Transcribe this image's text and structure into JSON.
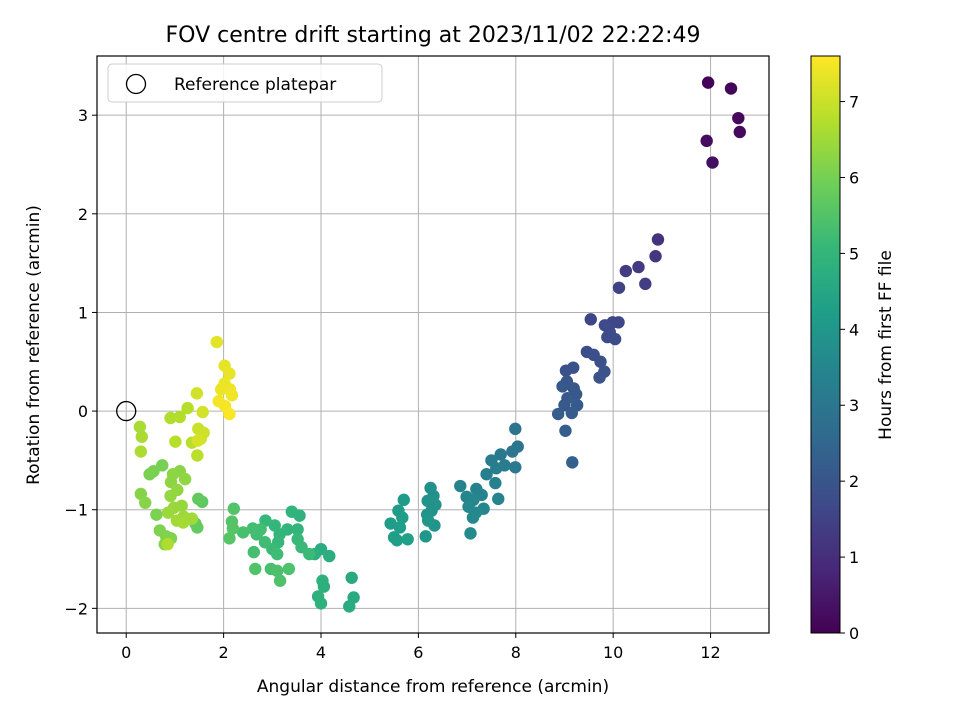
{
  "chart_data": {
    "type": "scatter",
    "title": "FOV centre drift starting at 2023/11/02 22:22:49",
    "xlabel": "Angular distance from reference (arcmin)",
    "ylabel": "Rotation from reference (arcmin)",
    "xlim": [
      -0.6,
      13.2
    ],
    "ylim": [
      -2.25,
      3.6
    ],
    "x_ticks": [
      0,
      2,
      4,
      6,
      8,
      10,
      12
    ],
    "y_ticks": [
      -2,
      -1,
      0,
      1,
      2,
      3
    ],
    "x_tick_labels": [
      "0",
      "2",
      "4",
      "6",
      "8",
      "10",
      "12"
    ],
    "y_tick_labels": [
      "−2",
      "−1",
      "0",
      "1",
      "2",
      "3"
    ],
    "grid": true,
    "legend": {
      "placement": "top-left",
      "entries": [
        {
          "label": "Reference platepar",
          "marker": "open-circle"
        }
      ]
    },
    "reference_point": {
      "x": 0,
      "y": 0
    },
    "colorbar": {
      "label": "Hours from first FF file",
      "colormap": "viridis",
      "range": [
        0,
        7.6
      ],
      "ticks": [
        0,
        1,
        2,
        3,
        4,
        5,
        6,
        7
      ],
      "tick_labels": [
        "0",
        "1",
        "2",
        "3",
        "4",
        "5",
        "6",
        "7"
      ]
    },
    "colormap_stops": [
      "#440154",
      "#482878",
      "#3e4a89",
      "#31688e",
      "#26828e",
      "#1f9e89",
      "#35b779",
      "#6ece58",
      "#b5de2b",
      "#fde725"
    ],
    "points": [
      {
        "x": 11.95,
        "y": 3.33,
        "t": 0.05
      },
      {
        "x": 12.42,
        "y": 3.27,
        "t": 0.1
      },
      {
        "x": 12.57,
        "y": 2.97,
        "t": 0.15
      },
      {
        "x": 12.6,
        "y": 2.83,
        "t": 0.2
      },
      {
        "x": 11.92,
        "y": 2.74,
        "t": 0.25
      },
      {
        "x": 12.04,
        "y": 2.52,
        "t": 0.3
      },
      {
        "x": 10.92,
        "y": 1.74,
        "t": 1.1
      },
      {
        "x": 10.87,
        "y": 1.57,
        "t": 1.2
      },
      {
        "x": 10.52,
        "y": 1.46,
        "t": 1.3
      },
      {
        "x": 10.26,
        "y": 1.42,
        "t": 1.35
      },
      {
        "x": 10.66,
        "y": 1.29,
        "t": 1.4
      },
      {
        "x": 10.12,
        "y": 1.25,
        "t": 1.5
      },
      {
        "x": 9.54,
        "y": 0.93,
        "t": 1.6
      },
      {
        "x": 9.99,
        "y": 0.9,
        "t": 1.62
      },
      {
        "x": 10.11,
        "y": 0.9,
        "t": 1.65
      },
      {
        "x": 9.83,
        "y": 0.87,
        "t": 1.68
      },
      {
        "x": 9.93,
        "y": 0.8,
        "t": 1.7
      },
      {
        "x": 9.88,
        "y": 0.75,
        "t": 1.72
      },
      {
        "x": 10.04,
        "y": 0.73,
        "t": 1.75
      },
      {
        "x": 9.46,
        "y": 0.6,
        "t": 1.8
      },
      {
        "x": 9.6,
        "y": 0.57,
        "t": 1.82
      },
      {
        "x": 9.74,
        "y": 0.5,
        "t": 1.85
      },
      {
        "x": 9.18,
        "y": 0.44,
        "t": 1.9
      },
      {
        "x": 9.03,
        "y": 0.41,
        "t": 1.92
      },
      {
        "x": 9.82,
        "y": 0.4,
        "t": 1.95
      },
      {
        "x": 9.72,
        "y": 0.34,
        "t": 1.97
      },
      {
        "x": 9.05,
        "y": 0.3,
        "t": 2.0
      },
      {
        "x": 9.19,
        "y": 0.23,
        "t": 2.02
      },
      {
        "x": 8.96,
        "y": 0.25,
        "t": 2.05
      },
      {
        "x": 9.24,
        "y": 0.17,
        "t": 2.08
      },
      {
        "x": 9.06,
        "y": 0.13,
        "t": 2.1
      },
      {
        "x": 9.0,
        "y": 0.06,
        "t": 2.12
      },
      {
        "x": 9.26,
        "y": 0.06,
        "t": 2.15
      },
      {
        "x": 9.15,
        "y": -0.02,
        "t": 2.18
      },
      {
        "x": 8.87,
        "y": -0.03,
        "t": 2.2
      },
      {
        "x": 9.02,
        "y": -0.2,
        "t": 2.25
      },
      {
        "x": 9.16,
        "y": -0.52,
        "t": 2.3
      },
      {
        "x": 7.99,
        "y": -0.18,
        "t": 2.9
      },
      {
        "x": 8.04,
        "y": -0.36,
        "t": 2.95
      },
      {
        "x": 7.93,
        "y": -0.41,
        "t": 3.0
      },
      {
        "x": 7.69,
        "y": -0.44,
        "t": 3.05
      },
      {
        "x": 7.99,
        "y": -0.57,
        "t": 3.1
      },
      {
        "x": 7.5,
        "y": -0.5,
        "t": 3.15
      },
      {
        "x": 7.77,
        "y": -0.55,
        "t": 3.18
      },
      {
        "x": 7.6,
        "y": -0.58,
        "t": 3.2
      },
      {
        "x": 7.4,
        "y": -0.64,
        "t": 3.25
      },
      {
        "x": 7.58,
        "y": -0.73,
        "t": 3.3
      },
      {
        "x": 7.19,
        "y": -0.79,
        "t": 3.35
      },
      {
        "x": 6.86,
        "y": -0.76,
        "t": 3.4
      },
      {
        "x": 7.3,
        "y": -0.85,
        "t": 3.42
      },
      {
        "x": 7.64,
        "y": -0.89,
        "t": 3.45
      },
      {
        "x": 6.99,
        "y": -0.87,
        "t": 3.48
      },
      {
        "x": 7.13,
        "y": -0.9,
        "t": 3.5
      },
      {
        "x": 7.34,
        "y": -0.99,
        "t": 3.52
      },
      {
        "x": 7.03,
        "y": -0.97,
        "t": 3.55
      },
      {
        "x": 7.18,
        "y": -1.03,
        "t": 3.58
      },
      {
        "x": 7.12,
        "y": -1.08,
        "t": 3.6
      },
      {
        "x": 7.07,
        "y": -1.24,
        "t": 3.65
      },
      {
        "x": 6.25,
        "y": -0.78,
        "t": 3.8
      },
      {
        "x": 6.31,
        "y": -0.86,
        "t": 3.82
      },
      {
        "x": 6.19,
        "y": -0.91,
        "t": 3.85
      },
      {
        "x": 6.35,
        "y": -0.95,
        "t": 3.87
      },
      {
        "x": 6.27,
        "y": -1.01,
        "t": 3.9
      },
      {
        "x": 6.18,
        "y": -1.05,
        "t": 3.92
      },
      {
        "x": 6.33,
        "y": -1.16,
        "t": 3.95
      },
      {
        "x": 6.2,
        "y": -1.11,
        "t": 3.97
      },
      {
        "x": 6.15,
        "y": -1.27,
        "t": 4.0
      },
      {
        "x": 5.7,
        "y": -0.9,
        "t": 4.1
      },
      {
        "x": 5.59,
        "y": -1.01,
        "t": 4.15
      },
      {
        "x": 5.67,
        "y": -1.08,
        "t": 4.18
      },
      {
        "x": 5.43,
        "y": -1.14,
        "t": 4.2
      },
      {
        "x": 5.62,
        "y": -1.18,
        "t": 4.22
      },
      {
        "x": 5.5,
        "y": -1.28,
        "t": 4.25
      },
      {
        "x": 5.56,
        "y": -1.31,
        "t": 4.27
      },
      {
        "x": 5.78,
        "y": -1.3,
        "t": 4.3
      },
      {
        "x": 4.63,
        "y": -1.69,
        "t": 4.6
      },
      {
        "x": 4.67,
        "y": -1.89,
        "t": 4.62
      },
      {
        "x": 4.58,
        "y": -1.98,
        "t": 4.65
      },
      {
        "x": 4.0,
        "y": -1.4,
        "t": 4.7
      },
      {
        "x": 4.17,
        "y": -1.47,
        "t": 4.72
      },
      {
        "x": 3.87,
        "y": -1.45,
        "t": 4.75
      },
      {
        "x": 4.03,
        "y": -1.72,
        "t": 4.78
      },
      {
        "x": 4.06,
        "y": -1.78,
        "t": 4.8
      },
      {
        "x": 3.94,
        "y": -1.88,
        "t": 4.82
      },
      {
        "x": 4.0,
        "y": -1.95,
        "t": 4.85
      },
      {
        "x": 3.56,
        "y": -1.06,
        "t": 4.9
      },
      {
        "x": 3.4,
        "y": -1.02,
        "t": 4.92
      },
      {
        "x": 3.52,
        "y": -1.2,
        "t": 4.95
      },
      {
        "x": 3.31,
        "y": -1.2,
        "t": 4.97
      },
      {
        "x": 3.15,
        "y": -1.25,
        "t": 5.0
      },
      {
        "x": 3.05,
        "y": -1.16,
        "t": 5.02
      },
      {
        "x": 2.86,
        "y": -1.11,
        "t": 5.05
      },
      {
        "x": 3.12,
        "y": -1.33,
        "t": 5.07
      },
      {
        "x": 3.52,
        "y": -1.3,
        "t": 5.1
      },
      {
        "x": 3.6,
        "y": -1.38,
        "t": 5.12
      },
      {
        "x": 3.76,
        "y": -1.45,
        "t": 5.15
      },
      {
        "x": 3.0,
        "y": -1.4,
        "t": 5.17
      },
      {
        "x": 3.1,
        "y": -1.45,
        "t": 5.2
      },
      {
        "x": 2.85,
        "y": -1.33,
        "t": 5.22
      },
      {
        "x": 2.68,
        "y": -1.25,
        "t": 5.25
      },
      {
        "x": 2.76,
        "y": -1.2,
        "t": 5.27
      },
      {
        "x": 2.6,
        "y": -1.19,
        "t": 5.3
      },
      {
        "x": 2.62,
        "y": -1.43,
        "t": 5.32
      },
      {
        "x": 2.4,
        "y": -1.23,
        "t": 5.35
      },
      {
        "x": 2.97,
        "y": -1.6,
        "t": 5.37
      },
      {
        "x": 3.1,
        "y": -1.62,
        "t": 5.4
      },
      {
        "x": 3.34,
        "y": -1.6,
        "t": 5.42
      },
      {
        "x": 3.16,
        "y": -1.72,
        "t": 5.45
      },
      {
        "x": 2.65,
        "y": -1.6,
        "t": 5.47
      },
      {
        "x": 2.21,
        "y": -0.99,
        "t": 5.5
      },
      {
        "x": 2.17,
        "y": -1.12,
        "t": 5.52
      },
      {
        "x": 2.19,
        "y": -1.19,
        "t": 5.55
      },
      {
        "x": 2.12,
        "y": -1.29,
        "t": 5.57
      },
      {
        "x": 1.56,
        "y": -0.92,
        "t": 5.7
      },
      {
        "x": 1.48,
        "y": -0.89,
        "t": 5.72
      },
      {
        "x": 1.42,
        "y": -1.14,
        "t": 5.75
      },
      {
        "x": 1.46,
        "y": -1.18,
        "t": 5.77
      },
      {
        "x": 0.74,
        "y": -0.55,
        "t": 6.0
      },
      {
        "x": 0.56,
        "y": -0.61,
        "t": 6.02
      },
      {
        "x": 0.48,
        "y": -0.64,
        "t": 6.05
      },
      {
        "x": 0.62,
        "y": -1.05,
        "t": 6.07
      },
      {
        "x": 0.69,
        "y": -1.21,
        "t": 6.1
      },
      {
        "x": 0.82,
        "y": -1.27,
        "t": 6.12
      },
      {
        "x": 0.92,
        "y": -1.29,
        "t": 6.15
      },
      {
        "x": 0.79,
        "y": -1.35,
        "t": 6.17
      },
      {
        "x": 0.3,
        "y": -0.84,
        "t": 6.2
      },
      {
        "x": 0.39,
        "y": -0.93,
        "t": 6.22
      },
      {
        "x": 1.1,
        "y": -0.61,
        "t": 6.25
      },
      {
        "x": 0.96,
        "y": -0.64,
        "t": 6.27
      },
      {
        "x": 0.92,
        "y": -0.72,
        "t": 6.3
      },
      {
        "x": 1.21,
        "y": -0.69,
        "t": 6.32
      },
      {
        "x": 1.05,
        "y": -0.8,
        "t": 6.35
      },
      {
        "x": 0.91,
        "y": -0.86,
        "t": 6.37
      },
      {
        "x": 1.14,
        "y": -0.96,
        "t": 6.4
      },
      {
        "x": 0.98,
        "y": -0.98,
        "t": 6.42
      },
      {
        "x": 0.86,
        "y": -1.03,
        "t": 6.45
      },
      {
        "x": 1.18,
        "y": -1.07,
        "t": 6.47
      },
      {
        "x": 1.04,
        "y": -1.11,
        "t": 6.5
      },
      {
        "x": 1.35,
        "y": -1.09,
        "t": 6.52
      },
      {
        "x": 1.17,
        "y": -1.13,
        "t": 6.55
      },
      {
        "x": 0.28,
        "y": -0.16,
        "t": 6.6
      },
      {
        "x": 0.32,
        "y": -0.26,
        "t": 6.62
      },
      {
        "x": 0.3,
        "y": -0.41,
        "t": 6.65
      },
      {
        "x": 0.85,
        "y": -1.35,
        "t": 6.68
      },
      {
        "x": 0.91,
        "y": -0.07,
        "t": 6.7
      },
      {
        "x": 1.1,
        "y": -0.06,
        "t": 6.72
      },
      {
        "x": 1.26,
        "y": 0.03,
        "t": 6.75
      },
      {
        "x": 1.01,
        "y": -0.31,
        "t": 6.78
      },
      {
        "x": 1.35,
        "y": -0.32,
        "t": 6.8
      },
      {
        "x": 1.46,
        "y": -0.45,
        "t": 6.82
      },
      {
        "x": 1.48,
        "y": -0.18,
        "t": 7.0
      },
      {
        "x": 1.59,
        "y": -0.22,
        "t": 7.02
      },
      {
        "x": 1.53,
        "y": -0.28,
        "t": 7.05
      },
      {
        "x": 1.45,
        "y": 0.18,
        "t": 7.08
      },
      {
        "x": 1.57,
        "y": -0.01,
        "t": 7.1
      },
      {
        "x": 1.47,
        "y": -0.3,
        "t": 7.12
      },
      {
        "x": 1.86,
        "y": 0.7,
        "t": 7.3
      },
      {
        "x": 2.02,
        "y": 0.46,
        "t": 7.32
      },
      {
        "x": 2.12,
        "y": 0.38,
        "t": 7.35
      },
      {
        "x": 2.02,
        "y": 0.28,
        "t": 7.37
      },
      {
        "x": 1.95,
        "y": 0.22,
        "t": 7.4
      },
      {
        "x": 2.13,
        "y": 0.22,
        "t": 7.42
      },
      {
        "x": 2.17,
        "y": 0.16,
        "t": 7.45
      },
      {
        "x": 1.9,
        "y": 0.1,
        "t": 7.47
      },
      {
        "x": 2.03,
        "y": 0.05,
        "t": 7.5
      },
      {
        "x": 2.12,
        "y": -0.03,
        "t": 7.55
      }
    ]
  }
}
